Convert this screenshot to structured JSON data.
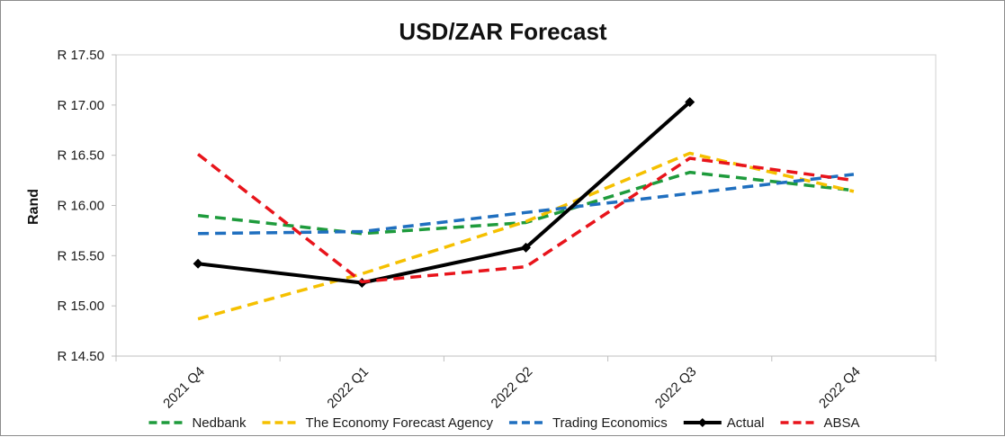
{
  "chart_data": {
    "type": "line",
    "title": "USD/ZAR Forecast",
    "xlabel": "",
    "ylabel": "Rand",
    "ylim": [
      14.5,
      17.5
    ],
    "y_ticks": [
      17.5,
      17.0,
      16.5,
      16.0,
      15.5,
      15.0,
      14.5
    ],
    "y_tick_labels": [
      "R 17.50",
      "R 17.00",
      "R 16.50",
      "R 16.00",
      "R 15.50",
      "R 15.00",
      "R 14.50"
    ],
    "categories": [
      "2021 Q4",
      "2022 Q1",
      "2022 Q2",
      "2022 Q3",
      "2022 Q4"
    ],
    "grid": false,
    "legend_position": "bottom",
    "series": [
      {
        "name": "Nedbank",
        "color": "#1e9b3c",
        "style": "dashed",
        "values": [
          15.9,
          15.72,
          15.83,
          16.33,
          16.15
        ]
      },
      {
        "name": "The Economy Forecast Agency",
        "color": "#f5c000",
        "style": "dashed",
        "values": [
          14.87,
          15.32,
          15.84,
          16.52,
          16.14
        ]
      },
      {
        "name": "Trading Economics",
        "color": "#1f6fbf",
        "style": "dashed",
        "values": [
          15.72,
          15.74,
          15.93,
          16.12,
          16.31
        ]
      },
      {
        "name": "Actual",
        "color": "#000000",
        "style": "solid-markers",
        "values": [
          15.42,
          15.23,
          15.58,
          17.03,
          null
        ]
      },
      {
        "name": "ABSA",
        "color": "#e8141b",
        "style": "dashed",
        "values": [
          16.51,
          15.24,
          15.39,
          16.47,
          16.25
        ]
      }
    ]
  }
}
